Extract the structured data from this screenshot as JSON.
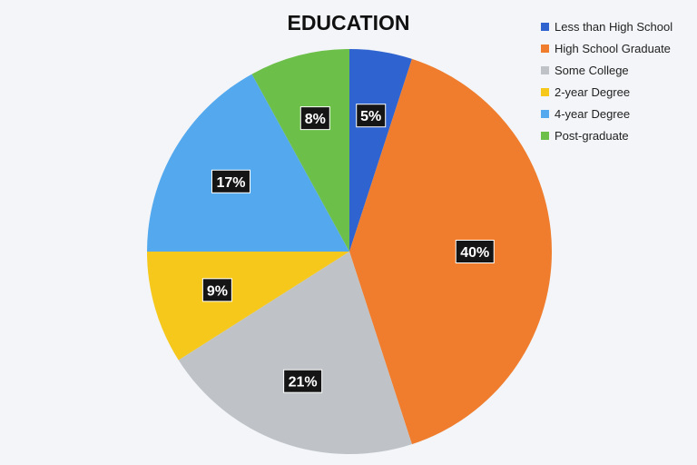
{
  "chart_data": {
    "type": "pie",
    "title": "EDUCATION",
    "categories": [
      "Less than High School",
      "High School Graduate",
      "Some College",
      "2-year Degree",
      "4-year Degree",
      "Post-graduate"
    ],
    "values": [
      5,
      40,
      21,
      9,
      17,
      8
    ],
    "value_labels": [
      "5%",
      "40%",
      "21%",
      "9%",
      "17%",
      "8%"
    ],
    "colors": [
      "#2f64d0",
      "#ef7d2d",
      "#bfc3c7",
      "#f5c81b",
      "#54a9ee",
      "#6cc04a"
    ],
    "start_angle": "12 o'clock",
    "direction": "clockwise",
    "legend_position": "top-right"
  }
}
